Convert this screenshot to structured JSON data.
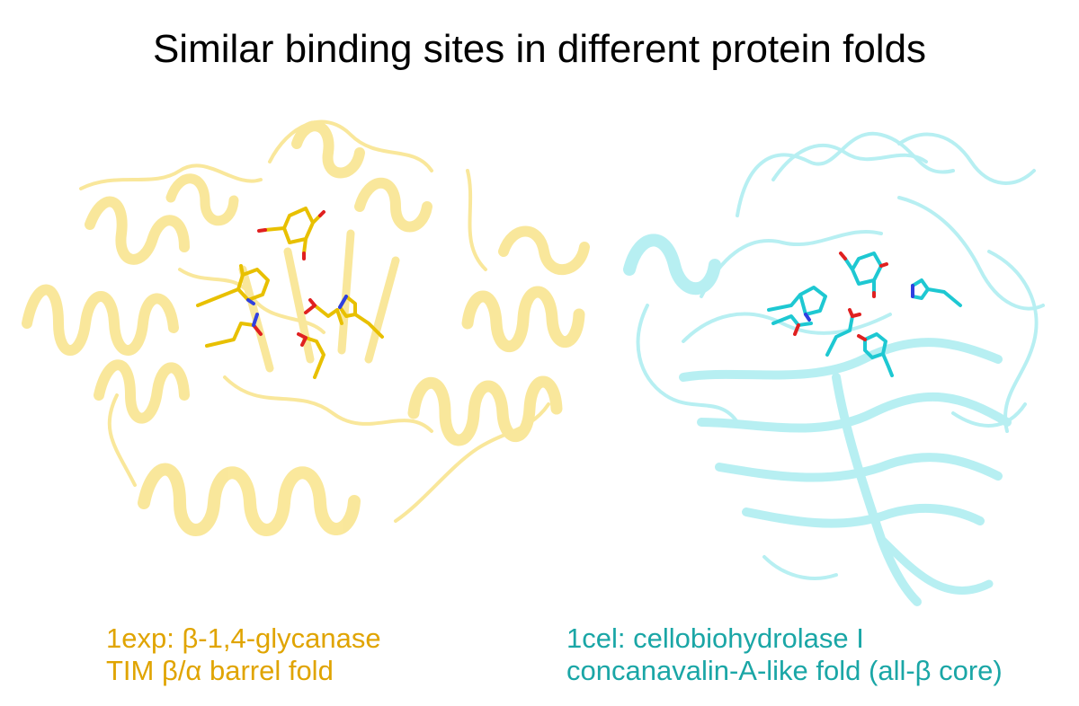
{
  "title": "Similar binding sites in different protein folds",
  "colors": {
    "left_protein": "#f5d54a",
    "left_sticks": "#e8c000",
    "left_caption": "#e0a400",
    "right_protein": "#7ee3e8",
    "right_sticks": "#1ec8d2",
    "right_caption": "#1aa6a6",
    "oxygen": "#e02020",
    "nitrogen": "#3040e0"
  },
  "left": {
    "name": "1exp: β-1,4-glycanase",
    "fold": "TIM β/α barrel fold"
  },
  "right": {
    "name": "1cel: cellobiohydrolase I",
    "fold": "concanavalin-A-like fold (all-β core)"
  }
}
